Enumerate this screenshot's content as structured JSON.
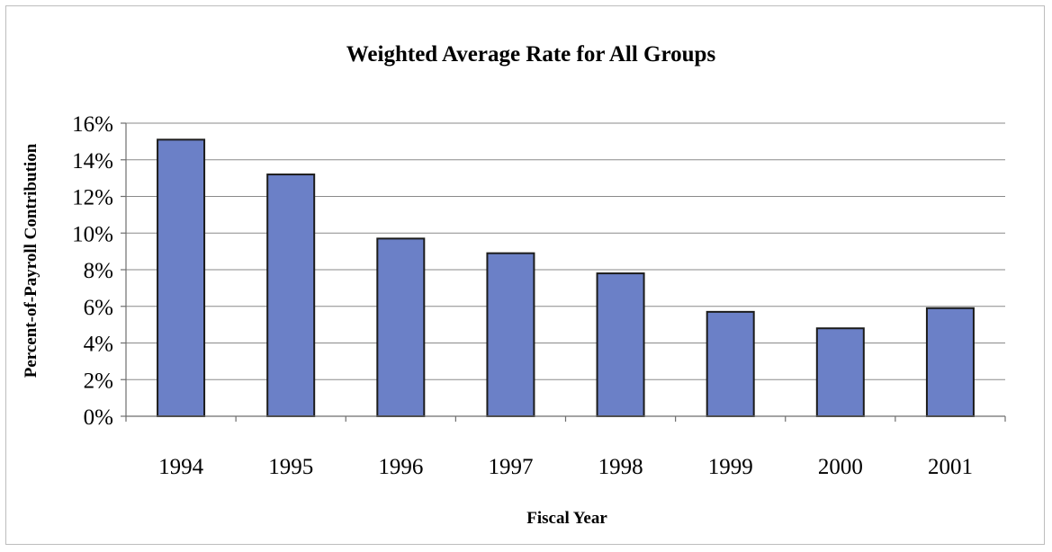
{
  "chart_data": {
    "type": "bar",
    "title": "Weighted Average Rate for All Groups",
    "xlabel": "Fiscal Year",
    "ylabel": "Percent-of-Payroll Contribution",
    "categories": [
      "1994",
      "1995",
      "1996",
      "1997",
      "1998",
      "1999",
      "2000",
      "2001"
    ],
    "values": [
      15.1,
      13.2,
      9.7,
      8.9,
      7.8,
      5.7,
      4.8,
      5.9
    ],
    "ylim": [
      0,
      16
    ],
    "yticks": [
      0,
      2,
      4,
      6,
      8,
      10,
      12,
      14,
      16
    ],
    "ytick_labels": [
      "0%",
      "2%",
      "4%",
      "6%",
      "8%",
      "10%",
      "12%",
      "14%",
      "16%"
    ],
    "grid": true,
    "legend": "none",
    "bar_color": "#6b80c7"
  }
}
